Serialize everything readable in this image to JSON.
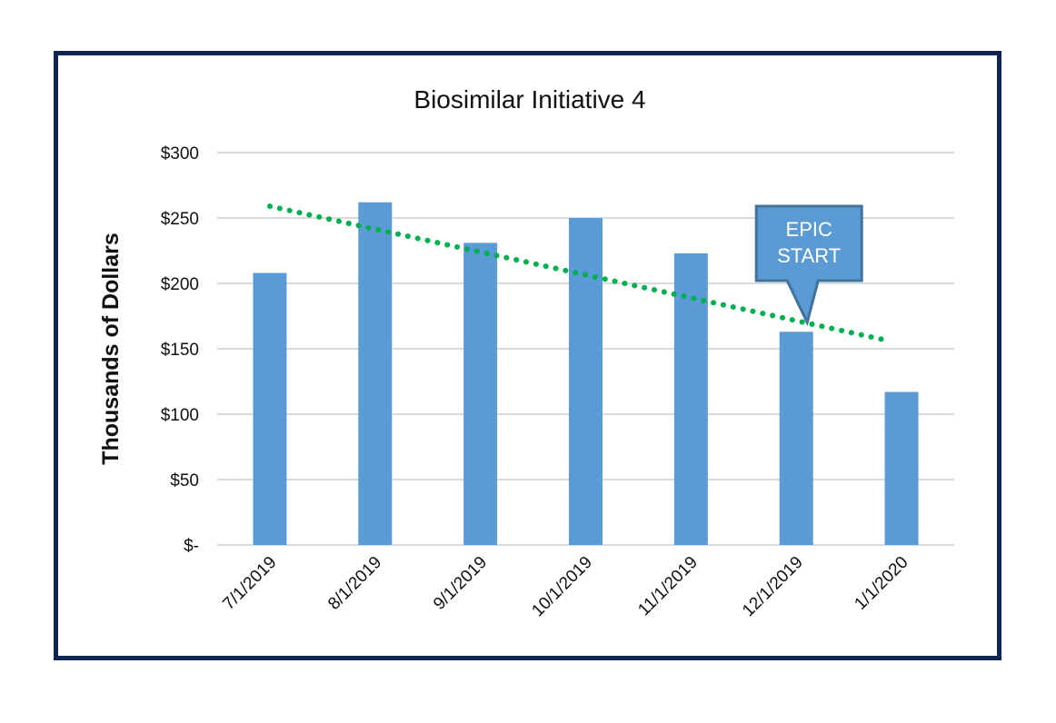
{
  "chart_data": {
    "type": "bar",
    "title": "Biosimilar Initiative 4",
    "xlabel": "",
    "ylabel": "Thousands of Dollars",
    "categories": [
      "7/1/2019",
      "8/1/2019",
      "9/1/2019",
      "10/1/2019",
      "11/1/2019",
      "12/1/2019",
      "1/1/2020"
    ],
    "values": [
      208,
      262,
      231,
      250,
      223,
      163,
      117
    ],
    "ylim": [
      0,
      300
    ],
    "yticks": [
      0,
      50,
      100,
      150,
      200,
      250,
      300
    ],
    "ytick_labels": [
      "$-",
      "$50",
      "$100",
      "$150",
      "$200",
      "$250",
      "$300"
    ],
    "grid": true,
    "bar_color": "#5b9bd5",
    "trendline": {
      "type": "linear",
      "style": "dotted",
      "color": "#00b050",
      "start": 259,
      "end": 157
    },
    "annotation": {
      "lines": [
        "EPIC",
        "START"
      ],
      "category": "12/1/2019",
      "fill": "#5b9bd5",
      "border": "#41719c"
    }
  }
}
